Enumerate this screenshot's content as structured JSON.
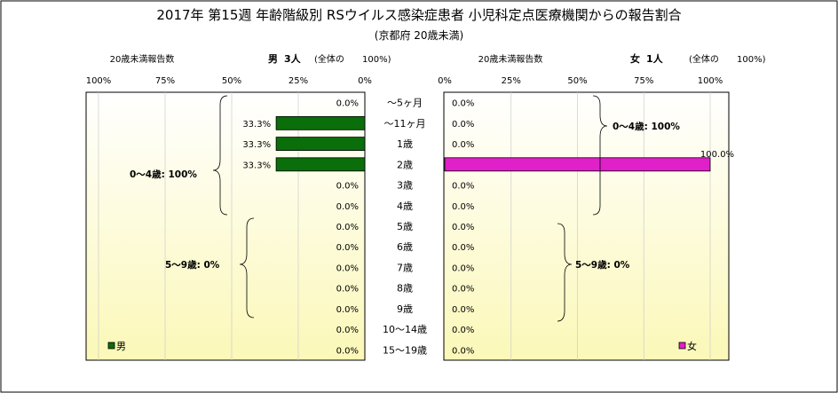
{
  "title": "2017年 第15週 年齢階級別 RSウイルス感染症患者 小児科定点医療機関からの報告割合",
  "subtitle": "(京都府 20歳未満)",
  "colors": {
    "male": "#0a6e0a",
    "female": "#e020c8",
    "bg_top": "#ffffff",
    "bg_bottom": "#fbf8b8",
    "grid": "#cccccc"
  },
  "male_panel": {
    "axis_label": "20歳未満報告数",
    "sex": "男",
    "count": "3人",
    "total_note": "(全体の",
    "total_pct": "100%)",
    "ticks": [
      "100%",
      "75%",
      "50%",
      "25%",
      "0%"
    ],
    "legend": "男",
    "groups": [
      {
        "label": "0～4歳: 100%"
      },
      {
        "label": "5～9歳: 0%"
      }
    ]
  },
  "female_panel": {
    "axis_label": "20歳未満報告数",
    "sex": "女",
    "count": "1人",
    "total_note": "(全体の",
    "total_pct": "100%)",
    "ticks": [
      "0%",
      "25%",
      "50%",
      "75%",
      "100%"
    ],
    "legend": "女",
    "groups": [
      {
        "label": "0～4歳: 100%"
      },
      {
        "label": "5～9歳: 0%"
      }
    ]
  },
  "chart_data": {
    "type": "bar",
    "orientation": "horizontal",
    "layout": "population-pyramid",
    "title": "2017年 第15週 年齢階級別 RSウイルス感染症患者 小児科定点医療機関からの報告割合",
    "subtitle": "(京都府 20歳未満)",
    "categories": [
      "～5ヶ月",
      "～11ヶ月",
      "1歳",
      "2歳",
      "3歳",
      "4歳",
      "5歳",
      "6歳",
      "7歳",
      "8歳",
      "9歳",
      "10～14歳",
      "15～19歳"
    ],
    "xlim": [
      0,
      100
    ],
    "series": [
      {
        "name": "男",
        "values": [
          0,
          33.3,
          33.3,
          33.3,
          0,
          0,
          0,
          0,
          0,
          0,
          0,
          0,
          0
        ],
        "labels": [
          "0.0%",
          "33.3%",
          "33.3%",
          "33.3%",
          "0.0%",
          "0.0%",
          "0.0%",
          "0.0%",
          "0.0%",
          "0.0%",
          "0.0%",
          "0.0%",
          "0.0%"
        ]
      },
      {
        "name": "女",
        "values": [
          0,
          0,
          0,
          100,
          0,
          0,
          0,
          0,
          0,
          0,
          0,
          0,
          0
        ],
        "labels": [
          "0.0%",
          "0.0%",
          "0.0%",
          "100.0%",
          "0.0%",
          "0.0%",
          "0.0%",
          "0.0%",
          "0.0%",
          "0.0%",
          "0.0%",
          "0.0%",
          "0.0%"
        ]
      }
    ],
    "grid": true,
    "legend": "bottom-corners"
  }
}
